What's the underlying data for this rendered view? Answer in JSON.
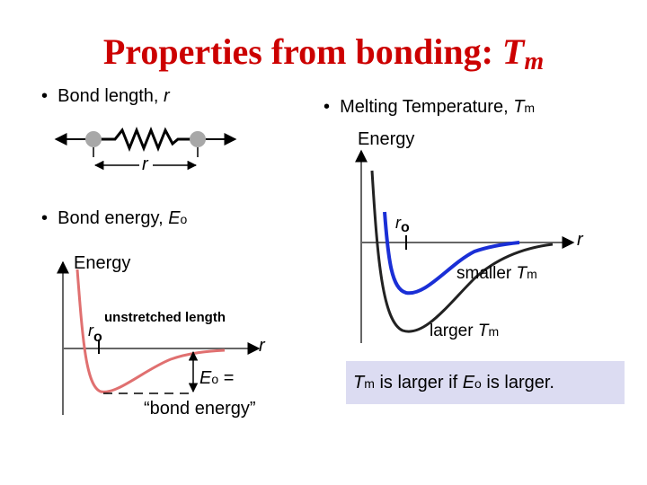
{
  "title": {
    "text": "Properties from bonding: ",
    "tm_main": "T",
    "tm_sub": "m"
  },
  "bond_length": {
    "bullet": "•",
    "label": "Bond length, ",
    "var": "r",
    "dim_label": "r"
  },
  "bond_energy": {
    "bullet": "•",
    "label": "Bond energy, ",
    "var": "E",
    "var_sub": "o"
  },
  "left_plot": {
    "ylabel": "Energy",
    "ro_main": "r",
    "ro_sub": "o",
    "unstretched": "unstretched length",
    "r_label": "r",
    "eo_main": "E",
    "eo_sub": "o",
    "eo_eq": " =",
    "bond_energy_quote": "“bond energy”",
    "curve_color": "#e07070"
  },
  "melting": {
    "bullet": "•",
    "label": "Melting Temperature, ",
    "var": "T",
    "var_sub": "m"
  },
  "right_plot": {
    "ylabel": "Energy",
    "ro_main": "r",
    "ro_sub": "o",
    "r_label": "r",
    "smaller_text": "smaller ",
    "smaller_var": "T",
    "smaller_sub": "m",
    "larger_text": "larger ",
    "larger_var": "T",
    "larger_sub": "m",
    "blue_color": "#1a2fd6",
    "black_color": "#222222"
  },
  "conclusion": {
    "t": "T",
    "t_sub": "m",
    "mid": " is larger if ",
    "e": "E",
    "e_sub": "o",
    "end": " is larger."
  }
}
